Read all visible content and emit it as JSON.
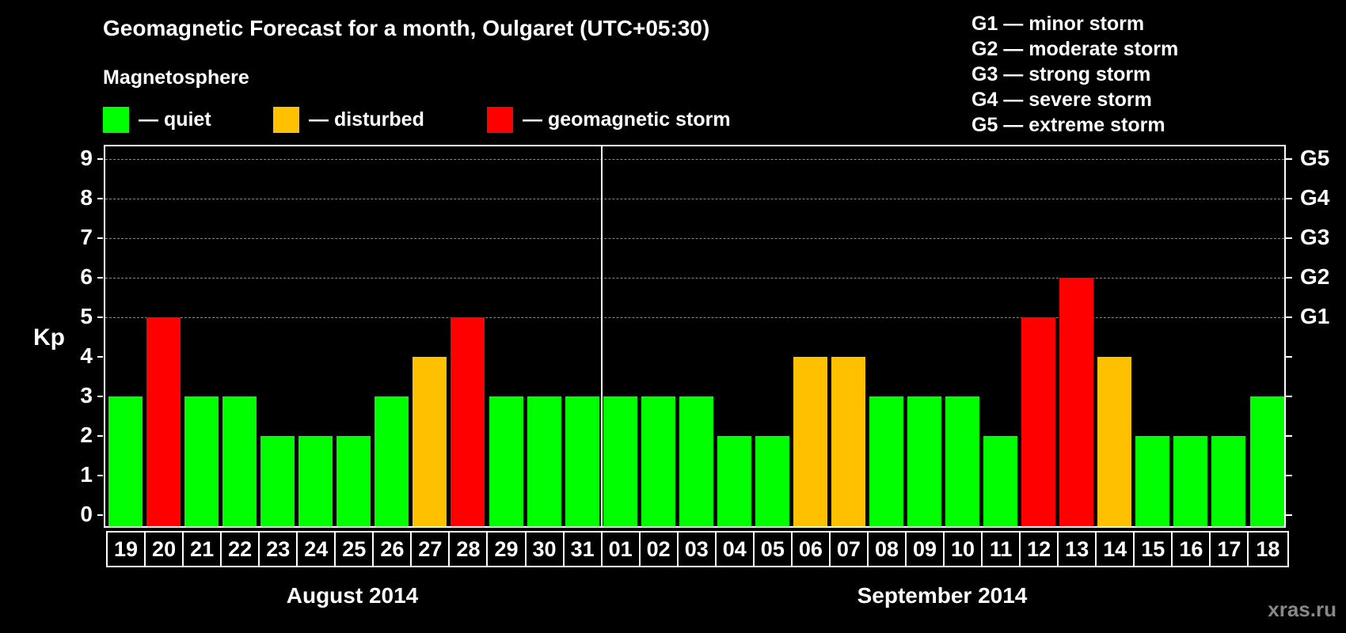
{
  "header": {
    "title": "Geomagnetic Forecast for a month, Oulgaret (UTC+05:30)",
    "subtitle": "Magnetosphere"
  },
  "legend": [
    {
      "label": "— quiet",
      "color": "#00ff00"
    },
    {
      "label": "— disturbed",
      "color": "#ffc000"
    },
    {
      "label": "— geomagnetic storm",
      "color": "#ff0000"
    }
  ],
  "g_scale": [
    "G1 — minor storm",
    "G2 — moderate storm",
    "G3 — strong storm",
    "G4 — severe storm",
    "G5 — extreme storm"
  ],
  "axis": {
    "y_label": "Kp",
    "y_ticks": [
      "0",
      "1",
      "2",
      "3",
      "4",
      "5",
      "6",
      "7",
      "8",
      "9"
    ],
    "g_ticks": [
      {
        "value": 5,
        "label": "G1"
      },
      {
        "value": 6,
        "label": "G2"
      },
      {
        "value": 7,
        "label": "G3"
      },
      {
        "value": 8,
        "label": "G4"
      },
      {
        "value": 9,
        "label": "G5"
      }
    ]
  },
  "months": [
    "August 2014",
    "September 2014"
  ],
  "watermark": "xras.ru",
  "colors": {
    "quiet": "#00ff00",
    "disturbed": "#ffc000",
    "storm": "#ff0000",
    "grid": "#8a8a8a"
  },
  "chart_data": {
    "type": "bar",
    "title": "Geomagnetic Forecast for a month, Oulgaret (UTC+05:30)",
    "xlabel": "",
    "ylabel": "Kp",
    "ylim": [
      0,
      9
    ],
    "grid": true,
    "categories": [
      "19",
      "20",
      "21",
      "22",
      "23",
      "24",
      "25",
      "26",
      "27",
      "28",
      "29",
      "30",
      "31",
      "01",
      "02",
      "03",
      "04",
      "05",
      "06",
      "07",
      "08",
      "09",
      "10",
      "11",
      "12",
      "13",
      "14",
      "15",
      "16",
      "17",
      "18"
    ],
    "month_groups": [
      {
        "label": "August 2014",
        "days": [
          "19",
          "20",
          "21",
          "22",
          "23",
          "24",
          "25",
          "26",
          "27",
          "28",
          "29",
          "30",
          "31"
        ]
      },
      {
        "label": "September 2014",
        "days": [
          "01",
          "02",
          "03",
          "04",
          "05",
          "06",
          "07",
          "08",
          "09",
          "10",
          "11",
          "12",
          "13",
          "14",
          "15",
          "16",
          "17",
          "18"
        ]
      }
    ],
    "values": [
      3,
      5,
      3,
      3,
      2,
      2,
      2,
      3,
      4,
      5,
      3,
      3,
      3,
      3,
      3,
      3,
      2,
      2,
      4,
      4,
      3,
      3,
      3,
      2,
      5,
      6,
      4,
      2,
      2,
      2,
      3
    ],
    "status": [
      "quiet",
      "storm",
      "quiet",
      "quiet",
      "quiet",
      "quiet",
      "quiet",
      "quiet",
      "disturbed",
      "storm",
      "quiet",
      "quiet",
      "quiet",
      "quiet",
      "quiet",
      "quiet",
      "quiet",
      "quiet",
      "disturbed",
      "disturbed",
      "quiet",
      "quiet",
      "quiet",
      "quiet",
      "storm",
      "storm",
      "disturbed",
      "quiet",
      "quiet",
      "quiet",
      "quiet"
    ],
    "legend": [
      "quiet",
      "disturbed",
      "geomagnetic storm"
    ],
    "right_axis_labels": {
      "5": "G1",
      "6": "G2",
      "7": "G3",
      "8": "G4",
      "9": "G5"
    }
  }
}
